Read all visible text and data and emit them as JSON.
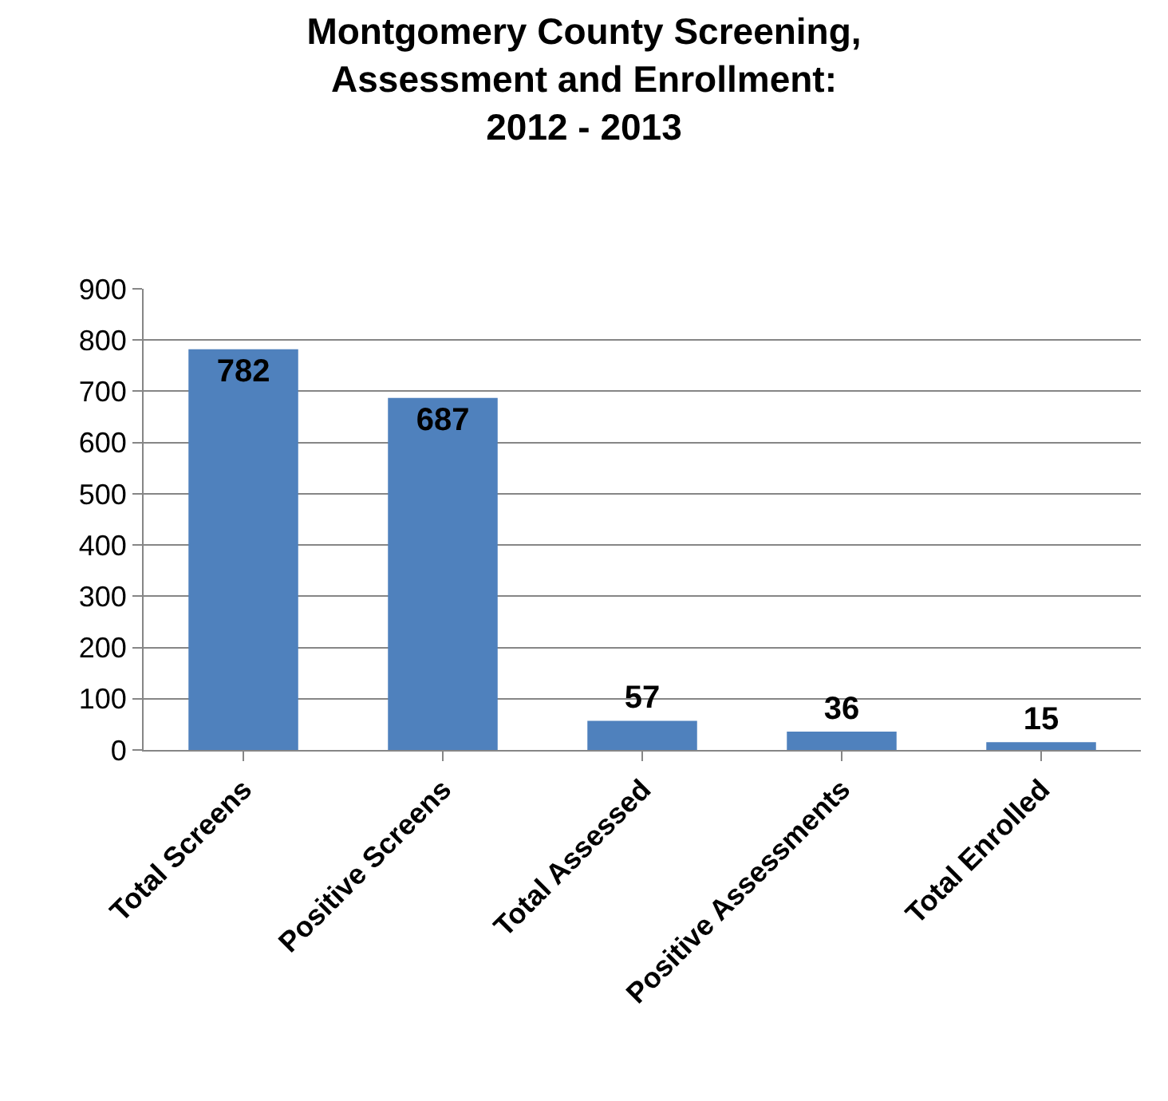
{
  "chart_data": {
    "type": "bar",
    "title": "Montgomery County Screening,\nAssessment and Enrollment:\n2012 - 2013",
    "categories": [
      "Total Screens",
      "Positive Screens",
      "Total Assessed",
      "Positive Assessments",
      "Total Enrolled"
    ],
    "values": [
      782,
      687,
      57,
      36,
      15
    ],
    "color": "#4f81bd",
    "ylim": [
      0,
      900
    ],
    "yticks": [
      0,
      100,
      200,
      300,
      400,
      500,
      600,
      700,
      800,
      900
    ],
    "grid": "y",
    "data_labels": true
  }
}
